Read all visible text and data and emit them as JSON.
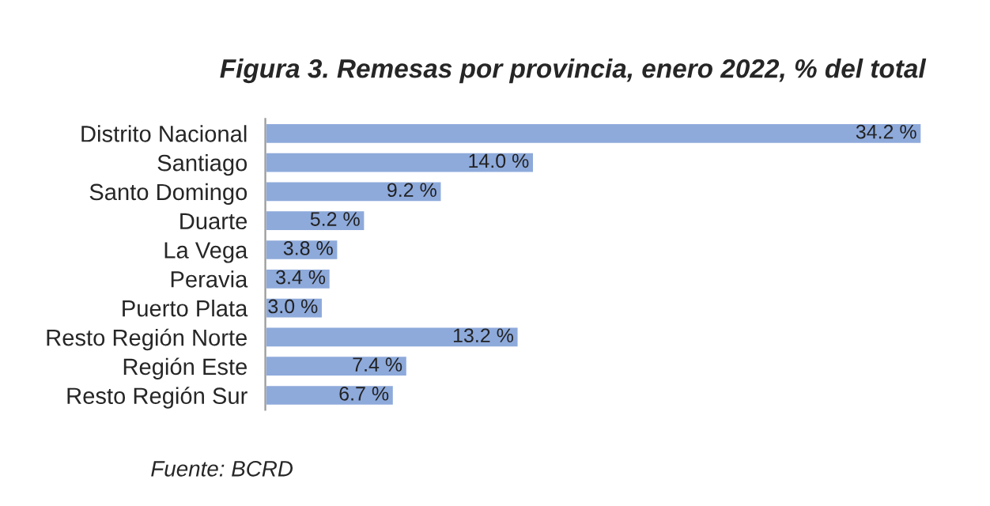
{
  "chart_data": {
    "type": "bar",
    "orientation": "horizontal",
    "title": "Figura 3. Remesas por provincia, enero 2022, % del total",
    "categories": [
      "Distrito Nacional",
      "Santiago",
      "Santo Domingo",
      "Duarte",
      "La Vega",
      "Peravia",
      "Puerto Plata",
      "Resto Región Norte",
      "Región Este",
      "Resto Región Sur"
    ],
    "values": [
      34.2,
      14.0,
      9.2,
      5.2,
      3.8,
      3.4,
      3.0,
      13.2,
      7.4,
      6.7
    ],
    "value_labels": [
      "34.2 %",
      "14.0 %",
      "9.2 %",
      "5.2 %",
      "3.8 %",
      "3.4 %",
      "3.0 %",
      "13.2 %",
      "7.4 %",
      "6.7 %"
    ],
    "color": "#8eaadb",
    "grid": false,
    "legend": false,
    "annotations": [
      "Fuente: BCRD"
    ]
  }
}
